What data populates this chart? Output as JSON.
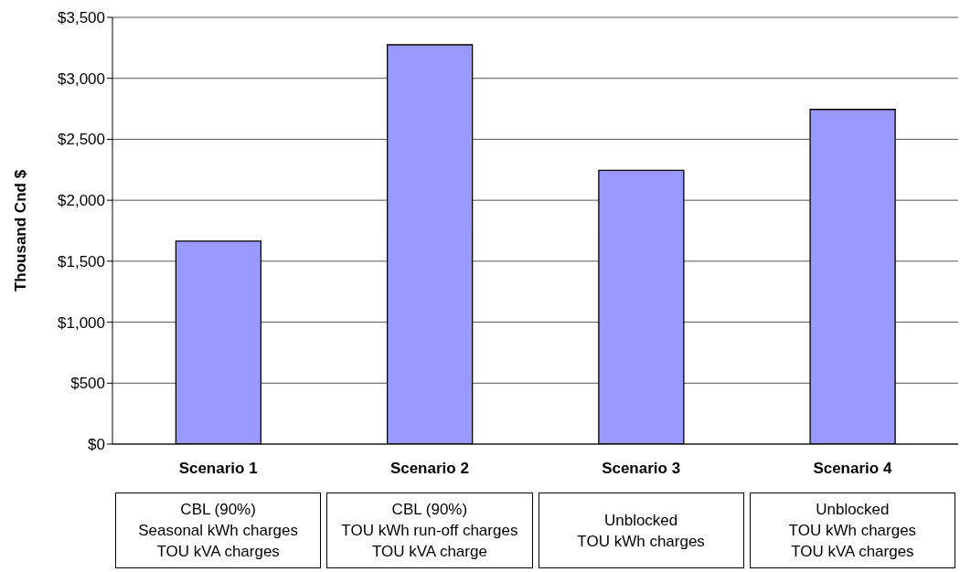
{
  "chart_data": {
    "type": "bar",
    "ylabel": "Thousand Cnd $",
    "categories": [
      "Scenario 1",
      "Scenario 2",
      "Scenario 3",
      "Scenario 4"
    ],
    "values": [
      1665,
      3275,
      2245,
      2745
    ],
    "color": "#9999ff",
    "ylim": [
      0,
      3500
    ],
    "yticks": [
      {
        "value": 0,
        "label": "$0"
      },
      {
        "value": 500,
        "label": "$500"
      },
      {
        "value": 1000,
        "label": "$1,000"
      },
      {
        "value": 1500,
        "label": "$1,500"
      },
      {
        "value": 2000,
        "label": "$2,000"
      },
      {
        "value": 2500,
        "label": "$2,500"
      },
      {
        "value": 3000,
        "label": "$3,000"
      },
      {
        "value": 3500,
        "label": "$3,500"
      }
    ],
    "grid": "y",
    "annotations": [
      "CBL (90%)\nSeasonal kWh charges\nTOU kVA charges",
      "CBL (90%)\nTOU kWh run-off charges\nTOU kVA charge",
      "Unblocked\nTOU kWh charges",
      "Unblocked\nTOU kWh charges\nTOU kVA charges"
    ]
  }
}
